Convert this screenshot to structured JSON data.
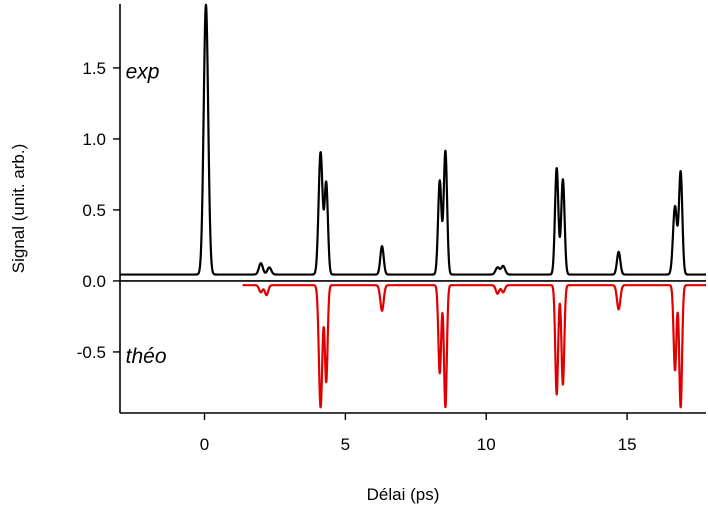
{
  "chart_data": {
    "type": "line",
    "xlabel": "Délai (ps)",
    "ylabel": "Signal (unit. arb.)",
    "xlim": [
      -3,
      17.8
    ],
    "ylim": [
      -0.93,
      1.95
    ],
    "x_ticks": [
      "0",
      "5",
      "10",
      "15"
    ],
    "x_tick_values": [
      0,
      5,
      10,
      15
    ],
    "y_ticks": [
      "-0.5",
      "0.0",
      "0.5",
      "1.0",
      "1.5"
    ],
    "y_tick_values": [
      -0.5,
      0.0,
      0.5,
      1.0,
      1.5
    ],
    "grid": false,
    "legend": "none",
    "annotations": [
      {
        "text": "exp",
        "x": -2.8,
        "y": 1.48
      },
      {
        "text": "théo",
        "x": -2.8,
        "y": -0.52
      }
    ],
    "series": [
      {
        "color": "#000000",
        "baseline": 0.045,
        "x_range": [
          -3,
          17.8
        ],
        "peaks": [
          {
            "x": 0.05,
            "amp": 1.9,
            "width": 0.08
          },
          {
            "x": 2.0,
            "amp": 0.08,
            "width": 0.07
          },
          {
            "x": 2.3,
            "amp": 0.05,
            "width": 0.07
          },
          {
            "x": 4.12,
            "amp": 0.86,
            "width": 0.07
          },
          {
            "x": 4.32,
            "amp": 0.64,
            "width": 0.06
          },
          {
            "x": 6.3,
            "amp": 0.2,
            "width": 0.06
          },
          {
            "x": 8.35,
            "amp": 0.66,
            "width": 0.06
          },
          {
            "x": 8.55,
            "amp": 0.87,
            "width": 0.06
          },
          {
            "x": 10.4,
            "amp": 0.05,
            "width": 0.07
          },
          {
            "x": 10.6,
            "amp": 0.06,
            "width": 0.07
          },
          {
            "x": 12.5,
            "amp": 0.75,
            "width": 0.06
          },
          {
            "x": 12.72,
            "amp": 0.67,
            "width": 0.06
          },
          {
            "x": 14.7,
            "amp": 0.16,
            "width": 0.06
          },
          {
            "x": 16.7,
            "amp": 0.48,
            "width": 0.07
          },
          {
            "x": 16.9,
            "amp": 0.72,
            "width": 0.06
          }
        ]
      },
      {
        "color": "#e00000",
        "baseline": -0.03,
        "x_range": [
          1.35,
          17.8
        ],
        "peaks": [
          {
            "x": 2.0,
            "amp": -0.05,
            "width": 0.06
          },
          {
            "x": 2.2,
            "amp": -0.07,
            "width": 0.06
          },
          {
            "x": 4.12,
            "amp": -0.86,
            "width": 0.06
          },
          {
            "x": 4.32,
            "amp": -0.68,
            "width": 0.05
          },
          {
            "x": 6.3,
            "amp": -0.18,
            "width": 0.06
          },
          {
            "x": 8.35,
            "amp": -0.62,
            "width": 0.05
          },
          {
            "x": 8.55,
            "amp": -0.86,
            "width": 0.05
          },
          {
            "x": 10.4,
            "amp": -0.06,
            "width": 0.06
          },
          {
            "x": 10.6,
            "amp": -0.05,
            "width": 0.06
          },
          {
            "x": 12.5,
            "amp": -0.77,
            "width": 0.05
          },
          {
            "x": 12.72,
            "amp": -0.7,
            "width": 0.05
          },
          {
            "x": 14.7,
            "amp": -0.17,
            "width": 0.06
          },
          {
            "x": 16.7,
            "amp": -0.6,
            "width": 0.05
          },
          {
            "x": 16.9,
            "amp": -0.86,
            "width": 0.05
          }
        ]
      }
    ]
  }
}
